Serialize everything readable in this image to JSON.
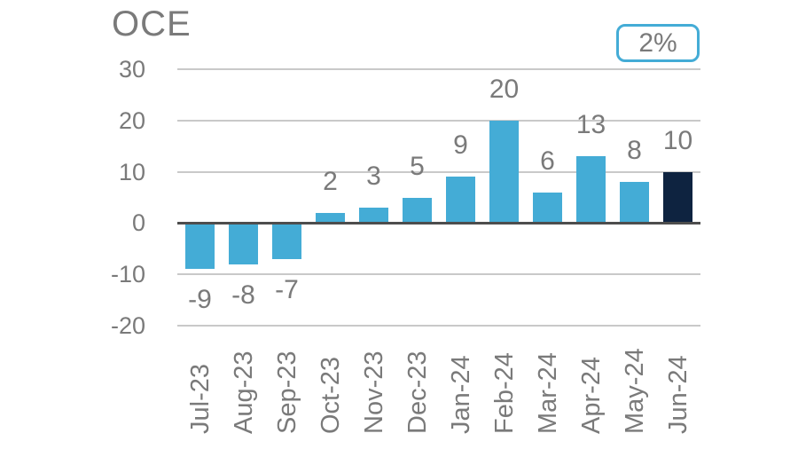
{
  "chart_data": {
    "type": "bar",
    "title": "OCE",
    "annotation_badge": "2%",
    "categories": [
      "Jul-23",
      "Aug-23",
      "Sep-23",
      "Oct-23",
      "Nov-23",
      "Dec-23",
      "Jan-24",
      "Feb-24",
      "Mar-24",
      "Apr-24",
      "May-24",
      "Jun-24"
    ],
    "values": [
      -9,
      -8,
      -7,
      2,
      3,
      5,
      9,
      20,
      6,
      13,
      8,
      10
    ],
    "data_labels": [
      "-9",
      "-8",
      "-7",
      "2",
      "3",
      "5",
      "9",
      "20",
      "6",
      "13",
      "8",
      "10"
    ],
    "yticks": [
      30,
      20,
      10,
      0,
      -10,
      -20
    ],
    "ylim": [
      -20,
      30
    ],
    "grid": true,
    "legend_position": "none",
    "highlight_index": 11,
    "colors": {
      "bar": "#44acd6",
      "highlight_bar": "#0e2340",
      "gridline": "#c9c9c9",
      "zero_line": "#4d4d4d",
      "text": "#7a7a7a",
      "badge_border": "#44acd6",
      "background": "#ffffff"
    }
  }
}
